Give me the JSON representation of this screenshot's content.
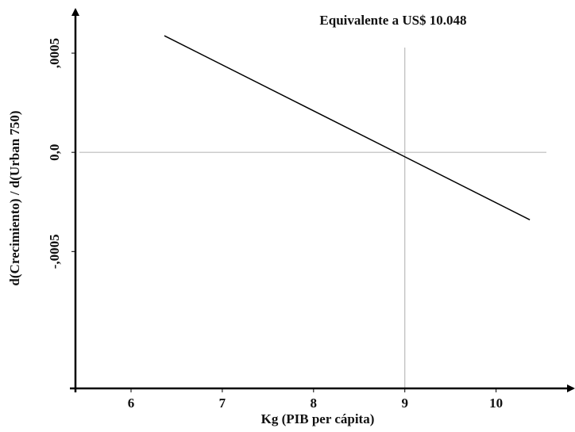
{
  "chart_data": {
    "type": "line",
    "annotation": "Equivalente a US$ 10.048",
    "x_label": "Kg (PIB per cápita)",
    "y_label": "d(Crecimiento) / d(Urban 750)",
    "x": [
      6.365,
      10.37
    ],
    "values": [
      0.000588,
      -0.00034
    ],
    "color": "#000000",
    "xlim": [
      5.33,
      10.83
    ],
    "ylim": [
      -0.00119,
      0.00072
    ],
    "xticks": [
      6,
      7,
      8,
      9,
      10
    ],
    "yticks": [
      {
        "value": 0.0005,
        "label": ",0005"
      },
      {
        "value": 0,
        "label": "0,0"
      },
      {
        "value": -0.0005,
        "label": "-,0005"
      }
    ],
    "hline": 0,
    "vline": 9,
    "ref_color": "#bbbbbb"
  }
}
